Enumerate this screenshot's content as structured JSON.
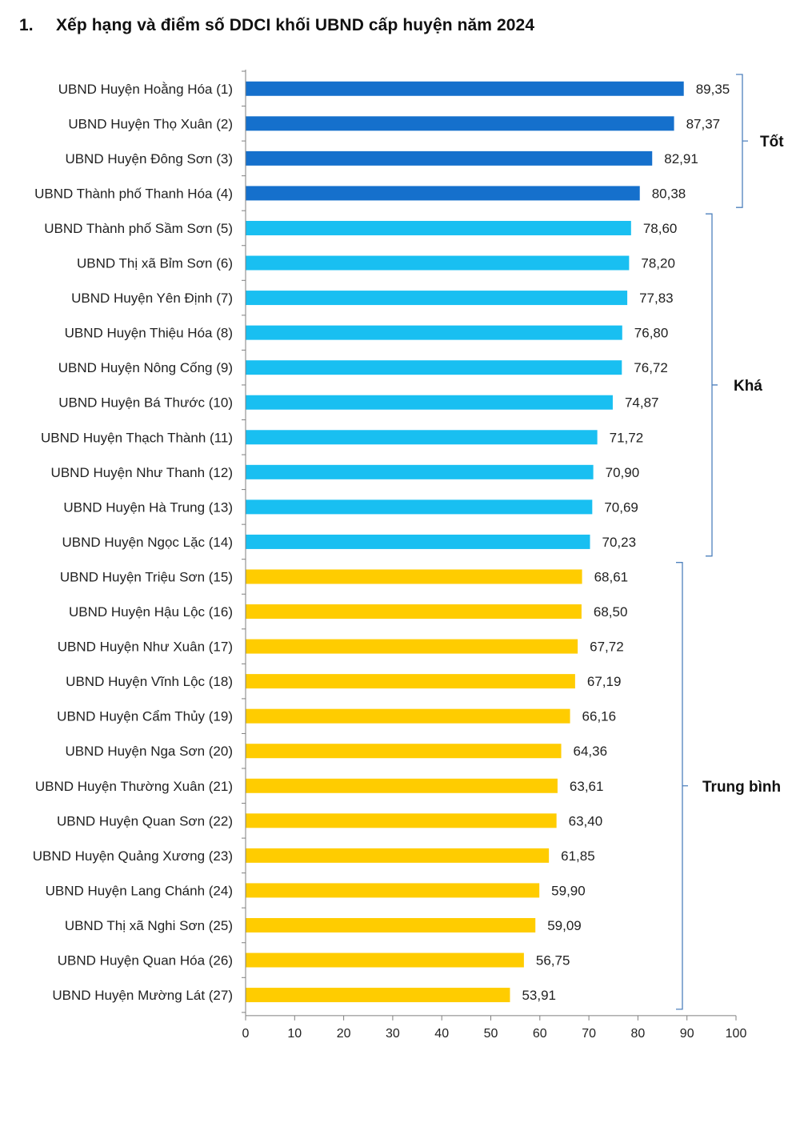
{
  "heading": {
    "number": "1.",
    "text": "Xếp hạng và điểm số DDCI khối UBND cấp huyện năm 2024"
  },
  "chart_data": {
    "type": "bar",
    "orientation": "horizontal",
    "title": "Xếp hạng và điểm số DDCI khối UBND cấp huyện năm 2024",
    "xlim": [
      0,
      100
    ],
    "xticks": [
      0,
      10,
      20,
      30,
      40,
      50,
      60,
      70,
      80,
      90,
      100
    ],
    "categories": [
      "UBND Huyện Hoằng Hóa (1)",
      "UBND Huyện Thọ Xuân (2)",
      "UBND Huyện Đông Sơn (3)",
      "UBND Thành phố Thanh Hóa (4)",
      "UBND Thành phố Sầm Sơn (5)",
      "UBND Thị xã Bỉm Sơn (6)",
      "UBND Huyện Yên Định (7)",
      "UBND Huyện Thiệu Hóa (8)",
      "UBND Huyện Nông Cống (9)",
      "UBND Huyện Bá Thước (10)",
      "UBND Huyện Thạch Thành (11)",
      "UBND Huyện Như Thanh (12)",
      "UBND Huyện Hà Trung (13)",
      "UBND Huyện Ngọc Lặc (14)",
      "UBND Huyện Triệu Sơn (15)",
      "UBND Huyện Hậu Lộc (16)",
      "UBND Huyện Như Xuân (17)",
      "UBND Huyện Vĩnh Lộc (18)",
      "UBND Huyện Cẩm Thủy (19)",
      "UBND Huyện Nga Sơn (20)",
      "UBND Huyện Thường Xuân (21)",
      "UBND Huyện Quan Sơn (22)",
      "UBND Huyện Quảng Xương (23)",
      "UBND Huyện Lang Chánh (24)",
      "UBND Thị xã Nghi Sơn (25)",
      "UBND Huyện Quan Hóa (26)",
      "UBND Huyện Mường Lát (27)"
    ],
    "values": [
      89.35,
      87.37,
      82.91,
      80.38,
      78.6,
      78.2,
      77.83,
      76.8,
      76.72,
      74.87,
      71.72,
      70.9,
      70.69,
      70.23,
      68.61,
      68.5,
      67.72,
      67.19,
      66.16,
      64.36,
      63.61,
      63.4,
      61.85,
      59.9,
      59.09,
      56.75,
      53.91
    ],
    "value_labels": [
      "89,35",
      "87,37",
      "82,91",
      "80,38",
      "78,60",
      "78,20",
      "77,83",
      "76,80",
      "76,72",
      "74,87",
      "71,72",
      "70,90",
      "70,69",
      "70,23",
      "68,61",
      "68,50",
      "67,72",
      "67,19",
      "66,16",
      "64,36",
      "63,61",
      "63,40",
      "61,85",
      "59,90",
      "59,09",
      "56,75",
      "53,91"
    ],
    "groups": [
      {
        "name": "Tốt",
        "start": 0,
        "end": 3,
        "color": "#1570CC"
      },
      {
        "name": "Khá",
        "start": 4,
        "end": 13,
        "color": "#19BFF1"
      },
      {
        "name": "Trung bình",
        "start": 14,
        "end": 26,
        "color": "#FFCC00"
      }
    ],
    "bracket_color": "#4F81BD",
    "grid": false,
    "legend": "none"
  }
}
